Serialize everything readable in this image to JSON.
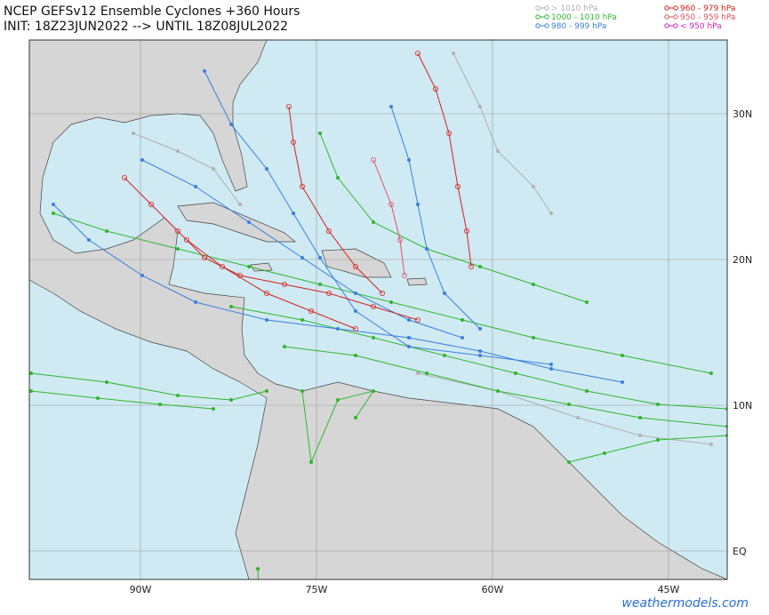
{
  "header": {
    "title_lines": [
      "NCEP GEFSv12 Ensemble Cyclones +360 Hours",
      "INIT: 18Z23JUN2022 --> UNTIL 18Z08JUL2022"
    ]
  },
  "legend": [
    {
      "label": "> 1010 hPa",
      "color": "#b0b0b0"
    },
    {
      "label": "1000 - 1010 hPa",
      "color": "#2db52d"
    },
    {
      "label": "980 - 999 hPa",
      "color": "#3a7fe0"
    },
    {
      "label": "960 - 979 hPa",
      "color": "#d42020"
    },
    {
      "label": "950 - 959 hPa",
      "color": "#e05060"
    },
    {
      "label": "< 950 hPa",
      "color": "#d020c0"
    }
  ],
  "map": {
    "lat_labels": [
      "30N",
      "20N",
      "10N",
      "EQ"
    ],
    "lon_labels": [
      "90W",
      "75W",
      "60W",
      "45W"
    ]
  },
  "watermark": "weathermodels.com"
}
